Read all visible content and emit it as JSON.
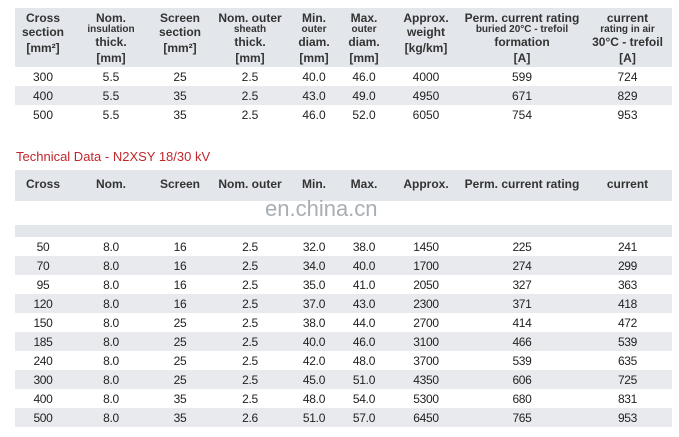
{
  "table1": {
    "headers": [
      {
        "l1": "Cross",
        "l2": "section",
        "l3": "",
        "unit": "[mm²]"
      },
      {
        "l1": "Nom.",
        "l2": "insulation",
        "l3": "thick.",
        "unit": "[mm]"
      },
      {
        "l1": "Screen",
        "l2": "section",
        "l3": "",
        "unit": "[mm²]"
      },
      {
        "l1": "Nom. outer",
        "l2": "sheath",
        "l3": "thick.",
        "unit": "[mm]"
      },
      {
        "l1": "Min.",
        "l2": "outer",
        "l3": "diam.",
        "unit": "[mm]"
      },
      {
        "l1": "Max.",
        "l2": "outer",
        "l3": "diam.",
        "unit": "[mm]"
      },
      {
        "l1": "Approx.",
        "l2": "weight",
        "l3": "",
        "unit": "[kg/km]"
      },
      {
        "l1": "Perm. current rating",
        "l2": "buried 20°C - trefoil",
        "l3": "formation",
        "unit": "[A]"
      },
      {
        "l1": "current",
        "l2": "rating in air",
        "l3": "30°C - trefoil",
        "unit": "[A]"
      }
    ],
    "rows": [
      [
        "300",
        "5.5",
        "25",
        "2.5",
        "40.0",
        "46.0",
        "4000",
        "599",
        "724"
      ],
      [
        "400",
        "5.5",
        "35",
        "2.5",
        "43.0",
        "49.0",
        "4950",
        "671",
        "829"
      ],
      [
        "500",
        "5.5",
        "35",
        "2.5",
        "46.0",
        "52.0",
        "6050",
        "754",
        "953"
      ]
    ]
  },
  "section_title": "Technical Data - N2XSY 18/30 kV",
  "watermark": "en.china.cn",
  "table2": {
    "headers": [
      "Cross",
      "Nom.",
      "Screen",
      "Nom. outer",
      "Min.",
      "Max.",
      "Approx.",
      "Perm. current rating",
      "current"
    ],
    "rows": [
      [
        "50",
        "8.0",
        "16",
        "2.5",
        "32.0",
        "38.0",
        "1450",
        "225",
        "241"
      ],
      [
        "70",
        "8.0",
        "16",
        "2.5",
        "34.0",
        "40.0",
        "1700",
        "274",
        "299"
      ],
      [
        "95",
        "8.0",
        "16",
        "2.5",
        "35.0",
        "41.0",
        "2050",
        "327",
        "363"
      ],
      [
        "120",
        "8.0",
        "16",
        "2.5",
        "37.0",
        "43.0",
        "2300",
        "371",
        "418"
      ],
      [
        "150",
        "8.0",
        "25",
        "2.5",
        "38.0",
        "44.0",
        "2700",
        "414",
        "472"
      ],
      [
        "185",
        "8.0",
        "25",
        "2.5",
        "40.0",
        "46.0",
        "3100",
        "466",
        "539"
      ],
      [
        "240",
        "8.0",
        "25",
        "2.5",
        "42.0",
        "48.0",
        "3700",
        "539",
        "635"
      ],
      [
        "300",
        "8.0",
        "25",
        "2.5",
        "45.0",
        "51.0",
        "4350",
        "606",
        "725"
      ],
      [
        "400",
        "8.0",
        "35",
        "2.5",
        "48.0",
        "54.0",
        "5300",
        "680",
        "831"
      ],
      [
        "500",
        "8.0",
        "35",
        "2.6",
        "51.0",
        "57.0",
        "6450",
        "765",
        "953"
      ]
    ]
  }
}
